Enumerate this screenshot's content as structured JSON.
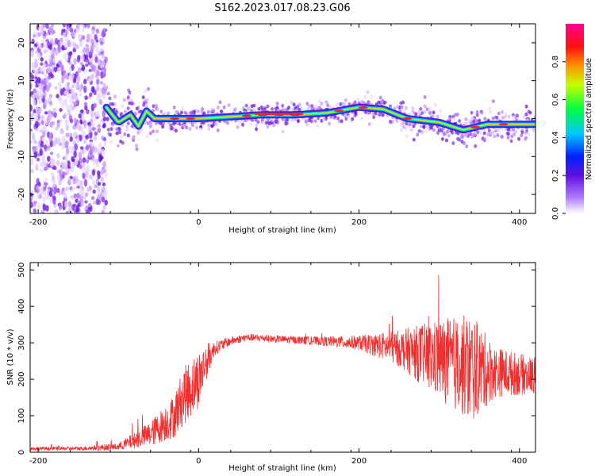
{
  "title": "S162.2023.017.08.23.G06",
  "colors": {
    "snr_line": "#f03030",
    "axis": "#000000",
    "background": "#ffffff"
  },
  "chart_data": [
    {
      "type": "heatmap",
      "xlabel": "Height of straight line (km)",
      "ylabel": "Frequency (Hz)",
      "xlim": [
        -210,
        420
      ],
      "ylim": [
        -25,
        25
      ],
      "xticks": [
        -200,
        0,
        200,
        400
      ],
      "yticks": [
        -20,
        -10,
        0,
        10,
        20
      ],
      "colorbar": {
        "label": "Normalized spectral amplitude",
        "range": [
          0.0,
          1.0
        ],
        "ticks": [
          0.0,
          0.2,
          0.4,
          0.6,
          0.8
        ]
      },
      "ridge": {
        "x": [
          -115,
          -100,
          -85,
          -75,
          -65,
          -55,
          -40,
          -20,
          0,
          40,
          80,
          120,
          160,
          200,
          230,
          260,
          300,
          330,
          360,
          390,
          420
        ],
        "y": [
          3,
          -1,
          1,
          -2,
          2,
          0,
          0,
          0,
          0,
          0.5,
          1,
          1,
          1.5,
          3,
          2.5,
          0,
          -1,
          -3,
          -1.5,
          -1.5,
          -1.5
        ]
      }
    },
    {
      "type": "line",
      "xlabel": "Height of straight line (km)",
      "ylabel": "SNR (10 * v/v)",
      "xlim": [
        -210,
        420
      ],
      "ylim": [
        0,
        520
      ],
      "xticks": [
        -200,
        0,
        200,
        400
      ],
      "yticks": [
        0,
        100,
        200,
        300,
        400,
        500
      ],
      "series": [
        {
          "x": [
            -210,
            -150,
            -100,
            -60,
            -30,
            -20,
            0,
            10,
            20,
            40,
            60,
            100,
            150,
            200,
            250,
            300,
            340,
            370,
            420
          ],
          "y": [
            10,
            10,
            15,
            50,
            100,
            150,
            200,
            250,
            285,
            305,
            315,
            310,
            305,
            300,
            285,
            255,
            230,
            220,
            210
          ],
          "spread": [
            5,
            5,
            10,
            35,
            60,
            80,
            80,
            50,
            20,
            12,
            10,
            10,
            12,
            20,
            50,
            110,
            150,
            70,
            50
          ]
        }
      ]
    }
  ]
}
